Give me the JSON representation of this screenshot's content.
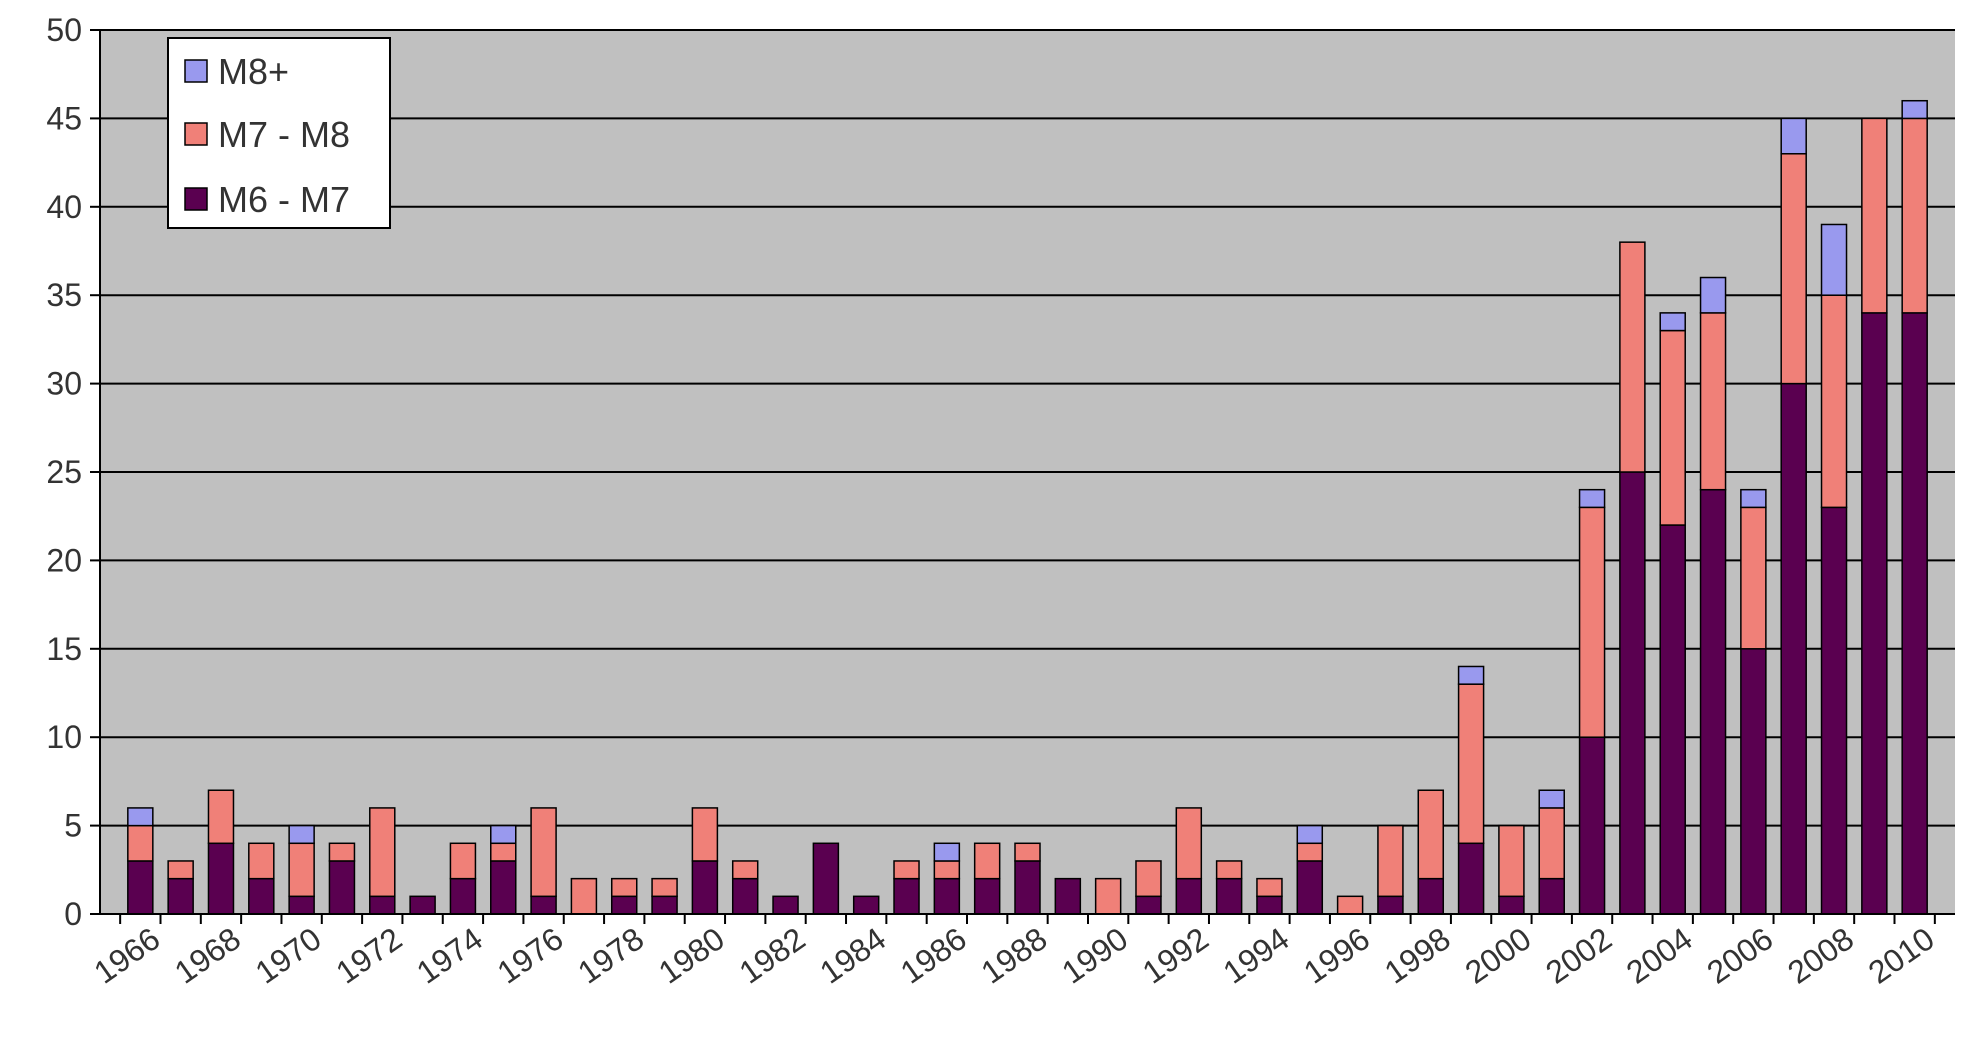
{
  "chart_data": {
    "type": "bar",
    "stacked": true,
    "categories": [
      "1966",
      "1967",
      "1968",
      "1969",
      "1970",
      "1971",
      "1972",
      "1973",
      "1974",
      "1975",
      "1976",
      "1977",
      "1978",
      "1979",
      "1980",
      "1981",
      "1982",
      "1983",
      "1984",
      "1985",
      "1986",
      "1987",
      "1988",
      "1989",
      "1990",
      "1991",
      "1992",
      "1993",
      "1994",
      "1995",
      "1996",
      "1997",
      "1998",
      "1999",
      "2000",
      "2001",
      "2002",
      "2003",
      "2004",
      "2005",
      "2006",
      "2007",
      "2008",
      "2009",
      "2010"
    ],
    "x_tick_labels": [
      "1966",
      "1968",
      "1970",
      "1972",
      "1974",
      "1976",
      "1978",
      "1980",
      "1982",
      "1984",
      "1986",
      "1988",
      "1990",
      "1992",
      "1994",
      "1996",
      "1998",
      "2000",
      "2002",
      "2004",
      "2006",
      "2008",
      "2010"
    ],
    "series": [
      {
        "name": "M6 - M7",
        "color": "#5a0050",
        "values": [
          3,
          2,
          4,
          2,
          1,
          3,
          1,
          1,
          2,
          3,
          1,
          0,
          1,
          1,
          3,
          2,
          1,
          4,
          1,
          2,
          2,
          2,
          3,
          2,
          0,
          1,
          2,
          2,
          1,
          3,
          0,
          1,
          2,
          4,
          1,
          2,
          10,
          25,
          22,
          24,
          15,
          30,
          23,
          34,
          34
        ]
      },
      {
        "name": "M7 - M8",
        "color": "#f08078",
        "values": [
          2,
          1,
          3,
          2,
          3,
          1,
          5,
          0,
          2,
          1,
          5,
          2,
          1,
          1,
          3,
          1,
          0,
          0,
          0,
          1,
          1,
          2,
          1,
          0,
          2,
          2,
          4,
          1,
          1,
          1,
          1,
          4,
          5,
          9,
          4,
          4,
          13,
          13,
          11,
          10,
          8,
          13,
          12,
          11,
          11
        ]
      },
      {
        "name": "M8+",
        "color": "#9999ee",
        "values": [
          1,
          0,
          0,
          0,
          1,
          0,
          0,
          0,
          0,
          1,
          0,
          0,
          0,
          0,
          0,
          0,
          0,
          0,
          0,
          0,
          1,
          0,
          0,
          0,
          0,
          0,
          0,
          0,
          0,
          1,
          0,
          0,
          0,
          1,
          0,
          1,
          1,
          0,
          1,
          2,
          1,
          2,
          4,
          0,
          1
        ]
      }
    ],
    "y_ticks": [
      "0",
      "5",
      "10",
      "15",
      "20",
      "25",
      "30",
      "35",
      "40",
      "45",
      "50"
    ],
    "ylim": [
      0,
      50
    ],
    "grid": true,
    "legend_position": "top-left",
    "plot_background": "#c0c0c0"
  }
}
